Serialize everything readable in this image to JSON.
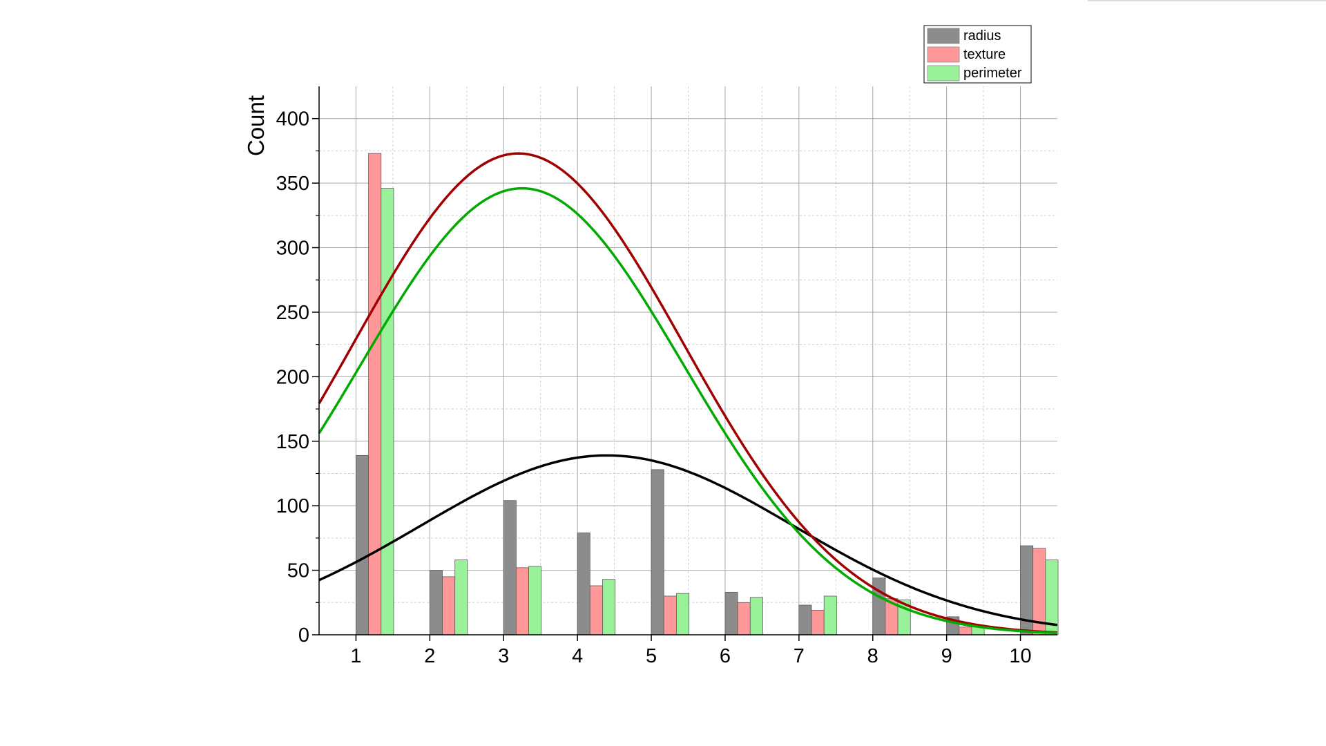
{
  "chart_data": {
    "type": "bar",
    "ylabel": "Count",
    "xlabel": "",
    "xlim": [
      0.5,
      10.5
    ],
    "ylim": [
      0,
      425
    ],
    "x_ticks": [
      1,
      2,
      3,
      4,
      5,
      6,
      7,
      8,
      9,
      10
    ],
    "y_ticks": [
      0,
      50,
      100,
      150,
      200,
      250,
      300,
      350,
      400
    ],
    "grid": "on",
    "legend_position": "top-right",
    "series": [
      {
        "name": "radius",
        "color": "#8c8c8c",
        "curve_color": "#000000",
        "values": [
          139,
          50,
          104,
          79,
          128,
          33,
          23,
          44,
          14,
          69
        ],
        "fit": {
          "type": "normal",
          "peak": 139,
          "mean": 4.4,
          "sd": 2.53
        }
      },
      {
        "name": "texture",
        "color": "#ff9999",
        "curve_color": "#a00000",
        "values": [
          373,
          45,
          52,
          38,
          30,
          25,
          19,
          28,
          6,
          67
        ],
        "fit": {
          "type": "normal",
          "peak": 373,
          "mean": 3.2,
          "sd": 2.23
        }
      },
      {
        "name": "perimeter",
        "color": "#99f299",
        "curve_color": "#00aa00",
        "values": [
          346,
          58,
          53,
          43,
          32,
          29,
          30,
          27,
          7,
          58
        ],
        "fit": {
          "type": "normal",
          "peak": 346,
          "mean": 3.25,
          "sd": 2.18
        }
      }
    ]
  }
}
